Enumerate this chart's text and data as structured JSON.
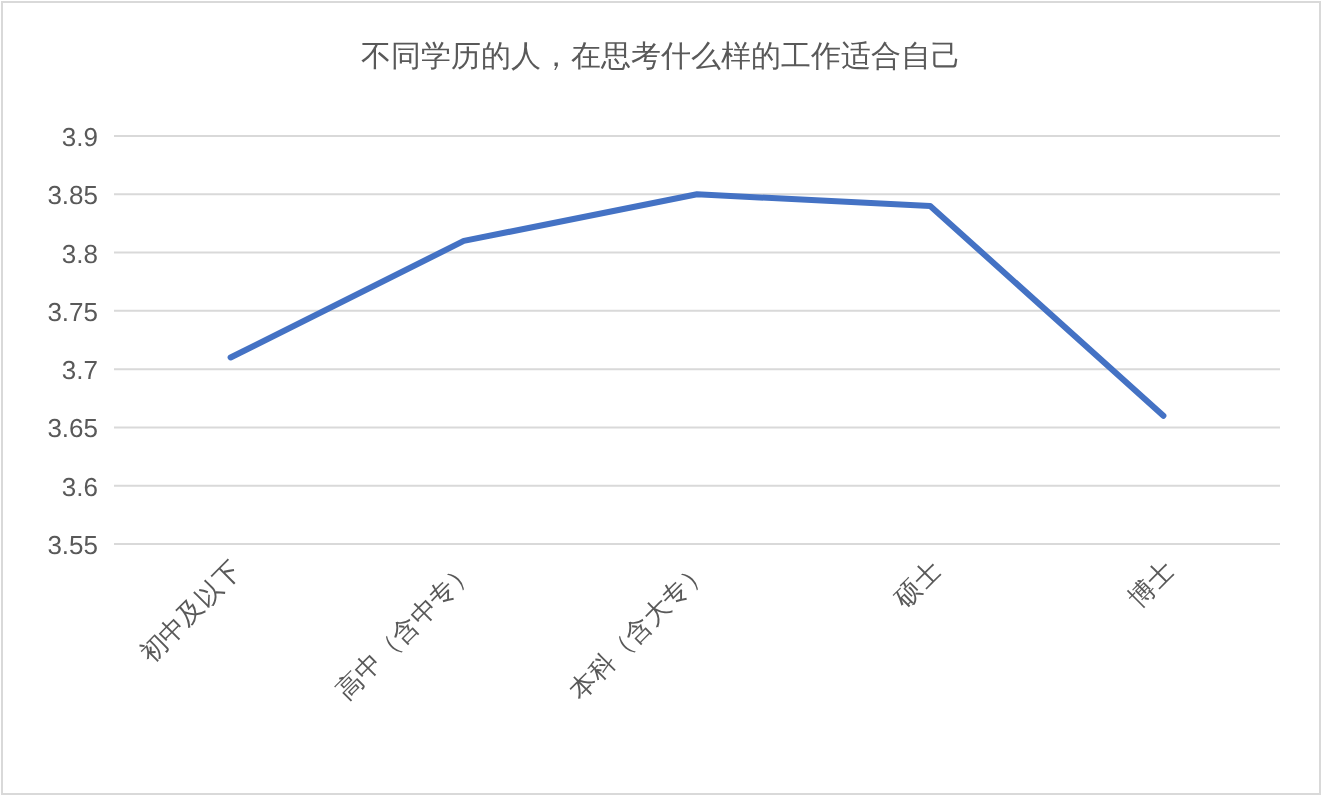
{
  "chart_data": {
    "type": "line",
    "title": "不同学历的人，在思考什么样的工作适合自己",
    "categories": [
      "初中及以下",
      "高中（含中专）",
      "本科（含大专）",
      "硕士",
      "博士"
    ],
    "series": [
      {
        "color": "#4472c4",
        "values": [
          3.71,
          3.81,
          3.85,
          3.84,
          3.66
        ]
      }
    ],
    "ylim": [
      3.55,
      3.9
    ],
    "yticks": [
      3.55,
      3.6,
      3.65,
      3.7,
      3.75,
      3.8,
      3.85,
      3.9
    ],
    "grid": "y",
    "marker": "none",
    "line_style": "solid"
  }
}
